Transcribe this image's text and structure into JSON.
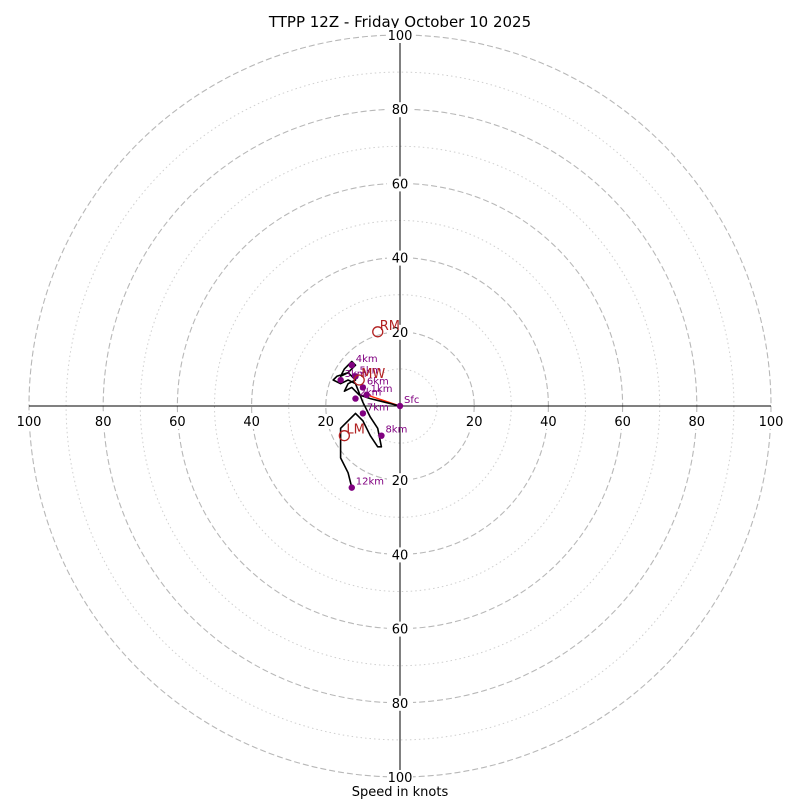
{
  "chart_data": {
    "type": "scatter",
    "subtype": "hodograph",
    "title": "TTPP 12Z - Friday October 10 2025",
    "xlabel": "Speed in knots",
    "ylabel": "",
    "xlim": [
      -100,
      100
    ],
    "ylim": [
      -100,
      100
    ],
    "major_rings": [
      20,
      40,
      60,
      80,
      100
    ],
    "minor_rings": [
      10,
      30,
      50,
      70,
      90
    ],
    "tick_values": [
      20,
      40,
      60,
      80,
      100
    ],
    "grid": true,
    "colors": {
      "hodograph": "#000000",
      "height_points": "#800080",
      "storm_motion": "#b22222",
      "shear_vector": "#ff2200",
      "ring": "#b8b8b8"
    },
    "hodograph_trace": [
      {
        "u": 0,
        "v": 0
      },
      {
        "u": -4,
        "v": 1
      },
      {
        "u": -8,
        "v": 2
      },
      {
        "u": -11,
        "v": 3
      },
      {
        "u": -13,
        "v": 5
      },
      {
        "u": -15,
        "v": 4
      },
      {
        "u": -14,
        "v": 6
      },
      {
        "u": -12,
        "v": 7
      },
      {
        "u": -14,
        "v": 9
      },
      {
        "u": -16,
        "v": 8
      },
      {
        "u": -15,
        "v": 10
      },
      {
        "u": -13,
        "v": 12
      },
      {
        "u": -12,
        "v": 11
      },
      {
        "u": -14,
        "v": 9
      },
      {
        "u": -17,
        "v": 8
      },
      {
        "u": -18,
        "v": 7
      },
      {
        "u": -16,
        "v": 6
      },
      {
        "u": -14,
        "v": 7
      },
      {
        "u": -12,
        "v": 6
      },
      {
        "u": -10,
        "v": 1
      },
      {
        "u": -9,
        "v": -1
      },
      {
        "u": -8,
        "v": -3
      },
      {
        "u": -6,
        "v": -6
      },
      {
        "u": -5,
        "v": -11
      },
      {
        "u": -6,
        "v": -11
      },
      {
        "u": -8,
        "v": -8
      },
      {
        "u": -10,
        "v": -4
      },
      {
        "u": -12,
        "v": -2
      },
      {
        "u": -14,
        "v": -4
      },
      {
        "u": -16,
        "v": -6
      },
      {
        "u": -16,
        "v": -9
      },
      {
        "u": -16,
        "v": -14
      },
      {
        "u": -14,
        "v": -18
      },
      {
        "u": -13,
        "v": -22
      }
    ],
    "height_points": [
      {
        "label": "Sfc",
        "u": 0,
        "v": 0
      },
      {
        "label": "1km",
        "u": -9,
        "v": 3
      },
      {
        "label": "2km",
        "u": -12,
        "v": 2
      },
      {
        "label": "3km",
        "u": -16,
        "v": 7
      },
      {
        "label": "4km",
        "u": -13,
        "v": 11
      },
      {
        "label": "5km",
        "u": -12,
        "v": 8
      },
      {
        "label": "6km",
        "u": -10,
        "v": 5
      },
      {
        "label": "7km",
        "u": -10,
        "v": -2
      },
      {
        "label": "8km",
        "u": -5,
        "v": -8
      },
      {
        "label": "12km",
        "u": -13,
        "v": -22
      }
    ],
    "storm_motion": [
      {
        "label": "RM",
        "u": -6,
        "v": 20
      },
      {
        "label": "LM",
        "u": -15,
        "v": -8
      },
      {
        "label": "MW",
        "u": -11,
        "v": 7
      }
    ],
    "shear_vector": {
      "from": {
        "u": 0,
        "v": 0
      },
      "to": {
        "u": -9,
        "v": 3
      }
    }
  }
}
